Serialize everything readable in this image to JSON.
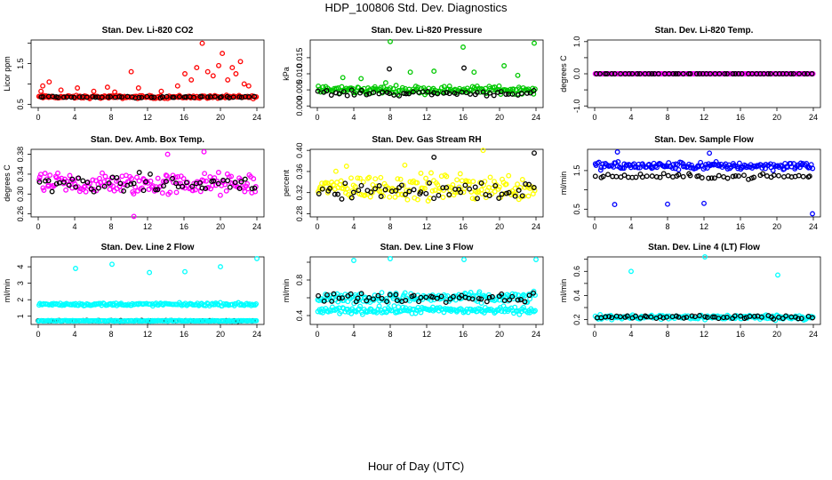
{
  "page": {
    "title": "HDP_100806  Std. Dev. Diagnostics",
    "x_caption": "Hour of Day (UTC)"
  },
  "chart_data": [
    {
      "type": "scatter",
      "title": "Stan. Dev. Li-820 CO2",
      "ylabel": "Licor ppm",
      "xlim": [
        0,
        24
      ],
      "ylim": [
        0.42,
        2.08
      ],
      "yticks": [
        0.5,
        1.0,
        1.5,
        2.0
      ],
      "yticklabels": [
        "0.5",
        "",
        "1.5",
        ""
      ],
      "xticks": [
        0,
        4,
        8,
        12,
        16,
        20,
        24
      ],
      "grid": false,
      "series": [
        {
          "color": "#ff0000",
          "base": 0.68,
          "spread": 0.09,
          "dense": true,
          "spikes": [
            [
              0.3,
              0.82
            ],
            [
              0.5,
              0.95
            ],
            [
              1.2,
              1.05
            ],
            [
              2.5,
              0.85
            ],
            [
              4.3,
              0.9
            ],
            [
              6.1,
              0.82
            ],
            [
              7.6,
              0.92
            ],
            [
              8.4,
              0.8
            ],
            [
              10.2,
              1.3
            ],
            [
              11.0,
              0.9
            ],
            [
              13.5,
              0.82
            ],
            [
              15.3,
              0.95
            ],
            [
              16.1,
              1.25
            ],
            [
              16.8,
              1.1
            ],
            [
              17.4,
              1.4
            ],
            [
              18.0,
              2.0
            ],
            [
              18.6,
              1.3
            ],
            [
              19.2,
              1.2
            ],
            [
              19.8,
              1.45
            ],
            [
              20.2,
              1.75
            ],
            [
              20.8,
              1.1
            ],
            [
              21.3,
              1.4
            ],
            [
              21.7,
              1.25
            ],
            [
              22.2,
              1.55
            ],
            [
              22.6,
              1.0
            ],
            [
              23.1,
              0.95
            ]
          ]
        },
        {
          "color": "#000000",
          "base": 0.68,
          "spread": 0.05,
          "dense": false,
          "spikes": []
        }
      ]
    },
    {
      "type": "scatter",
      "title": "Stan. Dev. Li-820 Pressure",
      "ylabel": "kPa",
      "xlim": [
        0,
        24
      ],
      "ylim": [
        -0.0005,
        0.0205
      ],
      "yticks": [
        0.0,
        0.005,
        0.01,
        0.015
      ],
      "yticklabels": [
        "0.000",
        "0.005",
        "0.010",
        "0.015"
      ],
      "xticks": [
        0,
        4,
        8,
        12,
        16,
        20,
        24
      ],
      "grid": false,
      "series": [
        {
          "color": "#00c800",
          "base": 0.005,
          "spread": 0.003,
          "dense": true,
          "spikes": [
            [
              8.0,
              0.02
            ],
            [
              16.0,
              0.0183
            ],
            [
              23.8,
              0.0195
            ],
            [
              10.2,
              0.0105
            ],
            [
              12.8,
              0.0108
            ],
            [
              17.2,
              0.0105
            ],
            [
              20.5,
              0.0125
            ],
            [
              22.0,
              0.0095
            ],
            [
              4.8,
              0.0085
            ],
            [
              7.5,
              0.0072
            ],
            [
              2.8,
              0.0088
            ]
          ]
        },
        {
          "color": "#000000",
          "base": 0.004,
          "spread": 0.002,
          "dense": false,
          "spikes": [
            [
              7.9,
              0.0115
            ],
            [
              16.1,
              0.0118
            ]
          ]
        }
      ]
    },
    {
      "type": "scatter",
      "title": "Stan. Dev. Li-820 Temp.",
      "ylabel": "degrees C",
      "xlim": [
        0,
        24
      ],
      "ylim": [
        -1.05,
        1.05
      ],
      "yticks": [
        -1.0,
        -0.5,
        0.0,
        0.5,
        1.0
      ],
      "yticklabels": [
        "-1.0",
        "",
        "0.0",
        "",
        "1.0"
      ],
      "xticks": [
        0,
        4,
        8,
        12,
        16,
        20,
        24
      ],
      "grid": false,
      "series": [
        {
          "color": "#ff00ff",
          "base": 0.0,
          "spread": 0.0,
          "dense": true,
          "spikes": []
        },
        {
          "color": "#000000",
          "base": 0.0,
          "spread": 0.0,
          "dense": false,
          "spikes": []
        }
      ]
    },
    {
      "type": "scatter",
      "title": "Stan. Dev. Amb. Box Temp.",
      "ylabel": "degrees C",
      "xlim": [
        0,
        24
      ],
      "ylim": [
        0.254,
        0.39
      ],
      "yticks": [
        0.26,
        0.3,
        0.34,
        0.38
      ],
      "yticklabels": [
        "0.26",
        "0.30",
        "0.34",
        "0.38"
      ],
      "xticks": [
        0,
        4,
        8,
        12,
        16,
        20,
        24
      ],
      "grid": false,
      "series": [
        {
          "color": "#ff00ff",
          "base": 0.32,
          "spread": 0.055,
          "dense": true,
          "spikes": [
            [
              10.5,
              0.255
            ],
            [
              18.2,
              0.385
            ],
            [
              14.2,
              0.38
            ]
          ]
        },
        {
          "color": "#000000",
          "base": 0.32,
          "spread": 0.045,
          "dense": false,
          "spikes": []
        }
      ]
    },
    {
      "type": "scatter",
      "title": "Stan. Dev. Gas Stream RH",
      "ylabel": "percent",
      "xlim": [
        0,
        24
      ],
      "ylim": [
        0.274,
        0.402
      ],
      "yticks": [
        0.28,
        0.32,
        0.36,
        0.4
      ],
      "yticklabels": [
        "0.28",
        "0.32",
        "0.36",
        "0.40"
      ],
      "xticks": [
        0,
        4,
        8,
        12,
        16,
        20,
        24
      ],
      "grid": false,
      "series": [
        {
          "color": "#ffff00",
          "base": 0.33,
          "spread": 0.06,
          "dense": true,
          "spikes": [
            [
              18.2,
              0.4
            ],
            [
              3.2,
              0.37
            ],
            [
              9.6,
              0.372
            ]
          ]
        },
        {
          "color": "#000000",
          "base": 0.325,
          "spread": 0.05,
          "dense": false,
          "spikes": [
            [
              23.8,
              0.395
            ],
            [
              12.8,
              0.387
            ]
          ]
        }
      ]
    },
    {
      "type": "scatter",
      "title": "Stan. Dev. Sample Flow",
      "ylabel": "ml/min",
      "xlim": [
        0,
        24
      ],
      "ylim": [
        0.3,
        2.05
      ],
      "yticks": [
        0.5,
        1.0,
        1.5
      ],
      "yticklabels": [
        "0.5",
        "",
        "1.5"
      ],
      "xticks": [
        0,
        4,
        8,
        12,
        16,
        20,
        24
      ],
      "grid": false,
      "series": [
        {
          "color": "#0000ff",
          "base": 1.62,
          "spread": 0.25,
          "dense": true,
          "spikes": [
            [
              2.2,
              0.62
            ],
            [
              8.0,
              0.63
            ],
            [
              12.0,
              0.65
            ],
            [
              23.9,
              0.38
            ],
            [
              2.5,
              1.98
            ],
            [
              12.6,
              1.95
            ]
          ]
        },
        {
          "color": "#000000",
          "base": 1.35,
          "spread": 0.15,
          "dense": false,
          "spikes": []
        }
      ]
    },
    {
      "type": "scatter",
      "title": "Stan. Dev. Line 2 Flow",
      "ylabel": "ml/min",
      "xlim": [
        0,
        24
      ],
      "ylim": [
        0.5,
        4.6
      ],
      "yticks": [
        1,
        2,
        3,
        4
      ],
      "yticklabels": [
        "1",
        "2",
        "3",
        "4"
      ],
      "xticks": [
        0,
        4,
        8,
        12,
        16,
        20,
        24
      ],
      "grid": false,
      "series": [
        {
          "color": "#00ffff",
          "base": 1.72,
          "spread": 0.22,
          "dense": true,
          "spikes": [
            [
              4.1,
              3.9
            ],
            [
              8.1,
              4.15
            ],
            [
              12.2,
              3.65
            ],
            [
              16.1,
              3.7
            ],
            [
              20.0,
              4.0
            ],
            [
              24.0,
              4.5
            ]
          ]
        },
        {
          "color": "#000000",
          "base": 0.72,
          "spread": 0.06,
          "dense": false,
          "spikes": []
        },
        {
          "color": "#00ffff",
          "base": 0.72,
          "spread": 0.06,
          "dense": true,
          "spikes": []
        }
      ]
    },
    {
      "type": "scatter",
      "title": "Stan. Dev. Line 3 Flow",
      "ylabel": "ml/min",
      "xlim": [
        0,
        24
      ],
      "ylim": [
        0.3,
        1.06
      ],
      "yticks": [
        0.4,
        0.6,
        0.8,
        1.0
      ],
      "yticklabels": [
        "0.4",
        "",
        "0.8",
        ""
      ],
      "xticks": [
        0,
        4,
        8,
        12,
        16,
        20,
        24
      ],
      "grid": false,
      "series": [
        {
          "color": "#00ffff",
          "base": 0.6,
          "spread": 0.14,
          "dense": true,
          "spikes": [
            [
              4.0,
              1.02
            ],
            [
              8.0,
              1.04
            ],
            [
              16.1,
              1.03
            ],
            [
              24.0,
              1.03
            ]
          ]
        },
        {
          "color": "#00ffff",
          "base": 0.46,
          "spread": 0.1,
          "dense": true,
          "spikes": []
        },
        {
          "color": "#000000",
          "base": 0.6,
          "spread": 0.12,
          "dense": false,
          "spikes": []
        }
      ]
    },
    {
      "type": "scatter",
      "title": "Stan. Dev. Line 4 (LT) Flow",
      "ylabel": "ml/min",
      "xlim": [
        0,
        24
      ],
      "ylim": [
        0.16,
        0.72
      ],
      "yticks": [
        0.2,
        0.3,
        0.4,
        0.5,
        0.6,
        0.7
      ],
      "yticklabels": [
        "0.2",
        "",
        "0.4",
        "",
        "0.6",
        ""
      ],
      "xticks": [
        0,
        4,
        8,
        12,
        16,
        20,
        24
      ],
      "grid": false,
      "series": [
        {
          "color": "#00ffff",
          "base": 0.22,
          "spread": 0.05,
          "dense": true,
          "spikes": [
            [
              4.0,
              0.6
            ],
            [
              12.1,
              0.72
            ],
            [
              20.1,
              0.57
            ]
          ]
        },
        {
          "color": "#000000",
          "base": 0.22,
          "spread": 0.04,
          "dense": false,
          "spikes": []
        }
      ]
    }
  ]
}
